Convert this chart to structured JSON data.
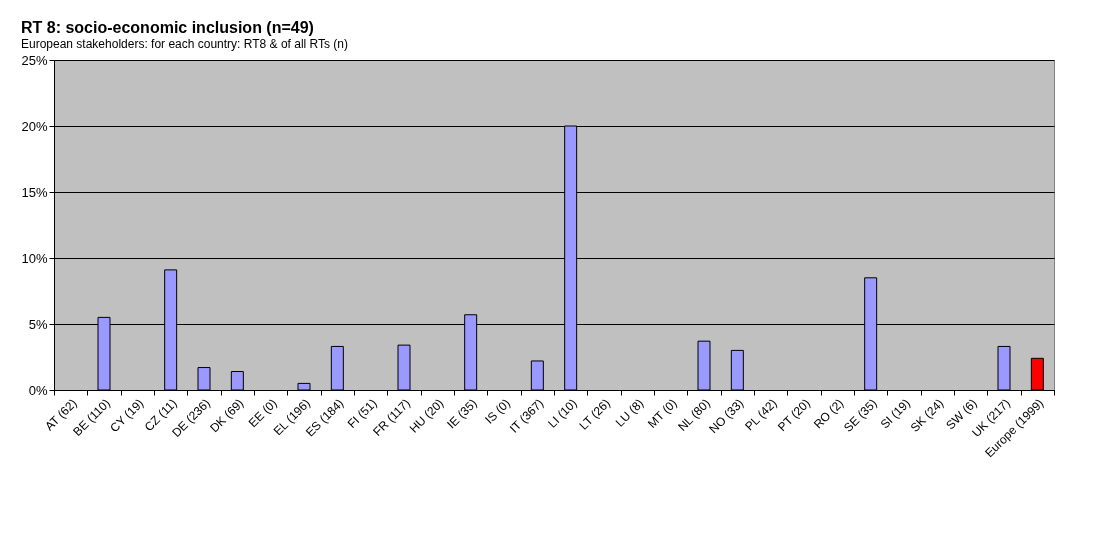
{
  "chart_data": {
    "type": "bar",
    "title": "RT 8: socio-economic inclusion (n=49)",
    "subtitle": "European stakeholders: for each country: RT8 & of all RTs (n)",
    "categories": [
      "AT (62)",
      "BE (110)",
      "CY (19)",
      "CZ (11)",
      "DE (236)",
      "DK (69)",
      "EE (0)",
      "EL (196)",
      "ES (184)",
      "FI (51)",
      "FR (117)",
      "HU (20)",
      "IE (35)",
      "IS (0)",
      "IT (367)",
      "LI (10)",
      "LT (26)",
      "LU (8)",
      "MT (0)",
      "NL (80)",
      "NO (33)",
      "PL (42)",
      "PT (20)",
      "RO (2)",
      "SE (35)",
      "SI (19)",
      "SK (24)",
      "SW (6)",
      "UK (217)",
      "Europe (1999)"
    ],
    "values": [
      0,
      5.5,
      0,
      9.1,
      1.7,
      1.4,
      0,
      0.5,
      3.3,
      0,
      3.4,
      0,
      5.7,
      0,
      2.2,
      20,
      0,
      0,
      0,
      3.7,
      3.0,
      0,
      0,
      0,
      8.5,
      0,
      0,
      0,
      3.3,
      2.4
    ],
    "colors": [
      "#9999ff",
      "#9999ff",
      "#9999ff",
      "#9999ff",
      "#9999ff",
      "#9999ff",
      "#9999ff",
      "#9999ff",
      "#9999ff",
      "#9999ff",
      "#9999ff",
      "#9999ff",
      "#9999ff",
      "#9999ff",
      "#9999ff",
      "#9999ff",
      "#9999ff",
      "#9999ff",
      "#9999ff",
      "#9999ff",
      "#9999ff",
      "#9999ff",
      "#9999ff",
      "#9999ff",
      "#9999ff",
      "#9999ff",
      "#9999ff",
      "#9999ff",
      "#9999ff",
      "#ff0000"
    ],
    "ylim": [
      0,
      25
    ],
    "yticks": [
      {
        "value": 0,
        "label": "0%"
      },
      {
        "value": 5,
        "label": "5%"
      },
      {
        "value": 10,
        "label": "10%"
      },
      {
        "value": 15,
        "label": "15%"
      },
      {
        "value": 20,
        "label": "20%"
      },
      {
        "value": 25,
        "label": "25%"
      }
    ],
    "grid": "y"
  }
}
